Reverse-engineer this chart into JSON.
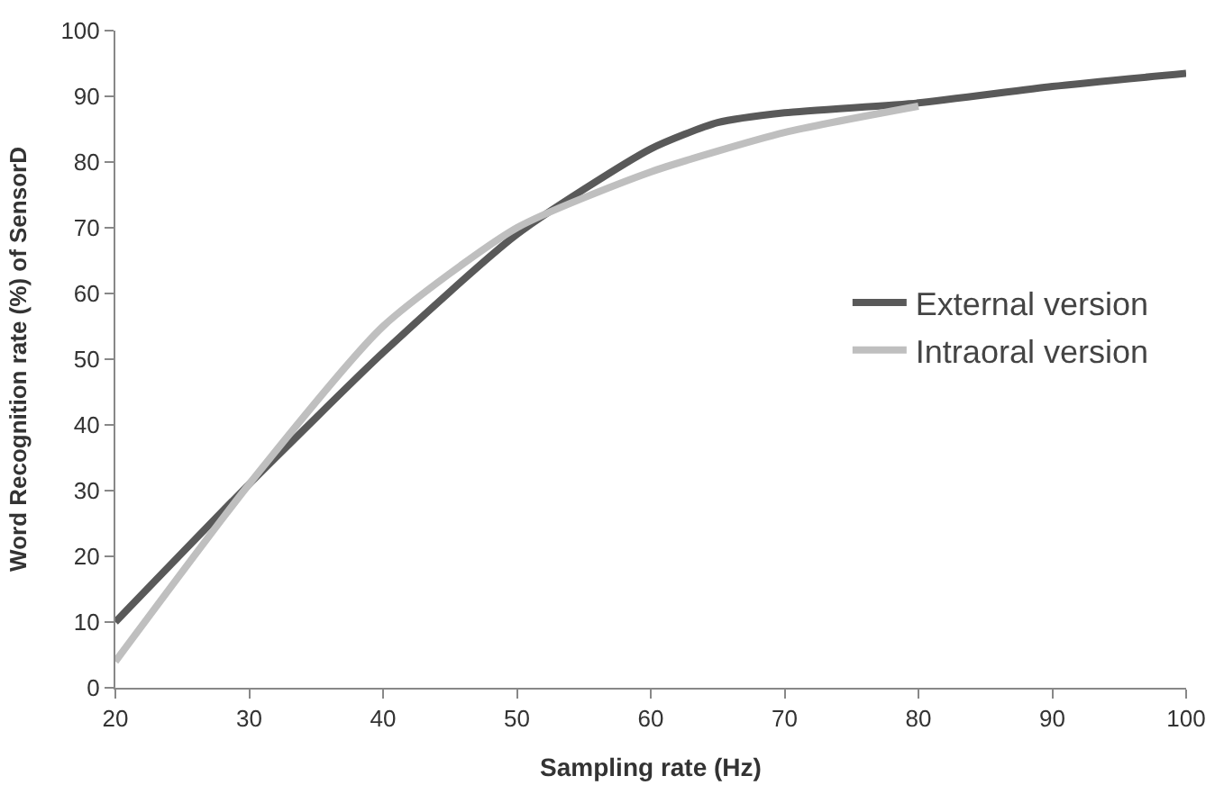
{
  "chart_data": {
    "type": "line",
    "xlabel": "Sampling rate (Hz)",
    "ylabel": "Word Recognition rate (%) of SensorD",
    "series": [
      {
        "name": "External version",
        "color": "#595959",
        "x": [
          20,
          30,
          40,
          50,
          60,
          65,
          70,
          80,
          90,
          100
        ],
        "values": [
          10,
          31,
          51,
          69,
          82,
          86,
          87.5,
          89,
          91.5,
          93.5
        ]
      },
      {
        "name": "Intraoral version",
        "color": "#bfbfbf",
        "x": [
          20,
          30,
          40,
          50,
          60,
          70,
          80
        ],
        "values": [
          4,
          31,
          55,
          70,
          78.5,
          84.5,
          88.5
        ]
      }
    ],
    "xlim": [
      20,
      100
    ],
    "xticks": [
      20,
      30,
      40,
      50,
      60,
      70,
      80,
      90,
      100
    ],
    "ylim": [
      0,
      100
    ],
    "yticks": [
      0,
      10,
      20,
      30,
      40,
      50,
      60,
      70,
      80,
      90,
      100
    ],
    "legend": "right",
    "marker": "none",
    "line_style": "solid"
  }
}
